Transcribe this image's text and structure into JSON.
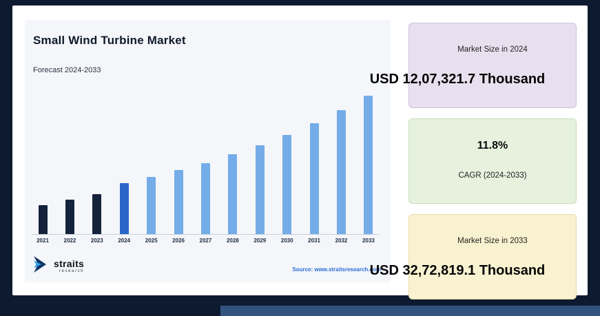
{
  "page": {
    "background_color": "#0d1a30",
    "panel_color": "#f4f6fa",
    "accent_strip_color": "#33537f"
  },
  "chart": {
    "title": "Small Wind Turbine Market",
    "subtitle": "Forecast 2024-2033",
    "source": "Source: www.straitsresearch.com"
  },
  "logo": {
    "name": "straits",
    "sub": "research"
  },
  "cards": {
    "size2024": {
      "label": "Market Size in 2024",
      "value": "USD 12,07,321.7 Thousand",
      "bg": "#e8e0ee"
    },
    "cagr": {
      "value": "11.8%",
      "label": "CAGR (2024-2033)",
      "bg": "#e6f1de"
    },
    "size2033": {
      "label": "Market Size in 2033",
      "value": "USD 32,72,819.1 Thousand",
      "bg": "#f9f2d0"
    }
  },
  "chart_data": {
    "type": "bar",
    "title": "Small Wind Turbine Market",
    "subtitle": "Forecast 2024-2033",
    "unit": "USD Thousand",
    "categories": [
      "2021",
      "2022",
      "2023",
      "2024",
      "2025",
      "2026",
      "2027",
      "2028",
      "2029",
      "2030",
      "2031",
      "2032",
      "2033"
    ],
    "values": [
      690000,
      815000,
      940000,
      1207321.7,
      1348800,
      1506900,
      1683500,
      1880800,
      2101300,
      2347500,
      2622700,
      2930000,
      3272819.1
    ],
    "bar_colors": [
      "#15223b",
      "#15223b",
      "#15223b",
      "#2a65c8",
      "#74ace8",
      "#74ace8",
      "#74ace8",
      "#74ace8",
      "#74ace8",
      "#74ace8",
      "#74ace8",
      "#74ace8",
      "#74ace8"
    ],
    "series_roles": {
      "historical": "#15223b",
      "base_year_2024": "#2a65c8",
      "forecast": "#74ace8"
    },
    "value_note": "2024 and 2033 values labeled on infographic; other years estimated from bar heights at 11.8% CAGR",
    "ylim": [
      0,
      3400000
    ],
    "grid": false,
    "legend": false,
    "xlabel": "",
    "ylabel": ""
  }
}
